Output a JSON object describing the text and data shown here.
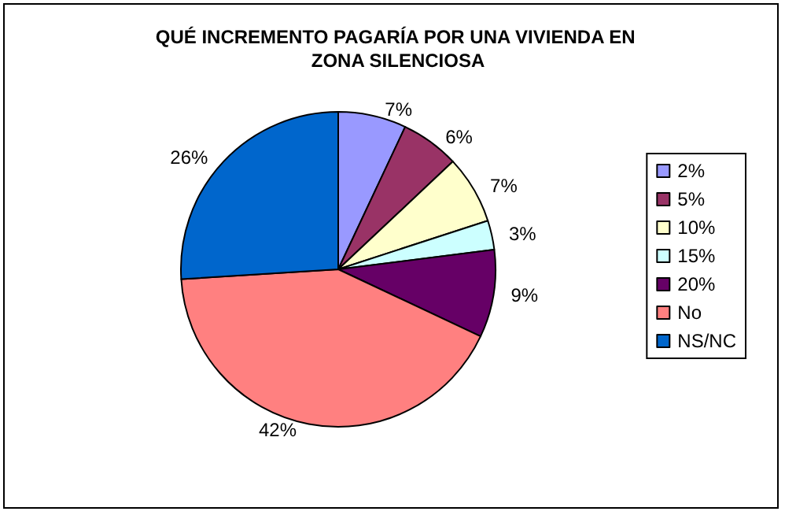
{
  "chart_data": {
    "type": "pie",
    "title": "QUÉ INCREMENTO PAGARÍA POR UNA VIVIENDA EN ZONA SILENCIOSA",
    "categories": [
      "2%",
      "5%",
      "10%",
      "15%",
      "20%",
      "No",
      "NS/NC"
    ],
    "values": [
      7,
      6,
      7,
      3,
      9,
      42,
      26
    ],
    "value_labels": [
      "7%",
      "6%",
      "7%",
      "3%",
      "9%",
      "42%",
      "26%"
    ],
    "colors": [
      "#9999ff",
      "#993366",
      "#ffffcc",
      "#ccffff",
      "#660066",
      "#ff8080",
      "#0066cc"
    ],
    "legend": "right"
  }
}
